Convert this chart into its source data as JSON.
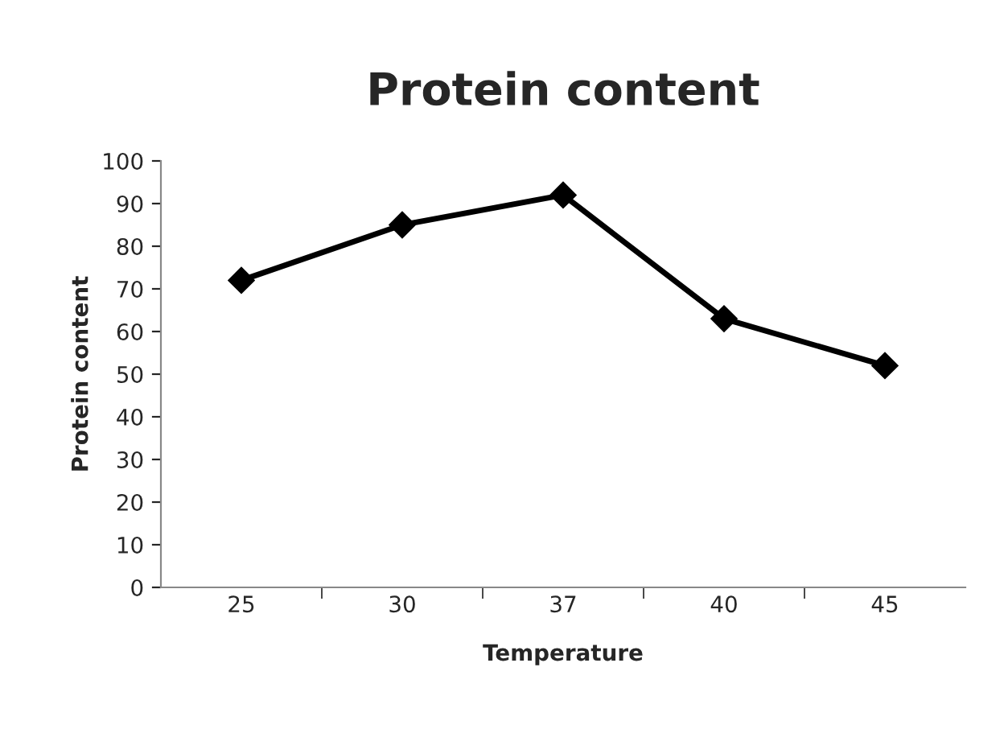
{
  "chart_data": {
    "type": "line",
    "title": "Protein content",
    "xlabel": "Temperature",
    "ylabel": "Protein content",
    "categories": [
      "25",
      "30",
      "37",
      "40",
      "45"
    ],
    "series": [
      {
        "color": "#000000",
        "values": [
          72,
          85,
          92,
          63,
          52
        ]
      }
    ],
    "ylim": [
      0,
      100
    ],
    "yticks": [
      0,
      10,
      20,
      30,
      40,
      50,
      60,
      70,
      80,
      90,
      100
    ],
    "marker": "diamond",
    "line_style": "solid",
    "grid": false,
    "legend": false
  }
}
